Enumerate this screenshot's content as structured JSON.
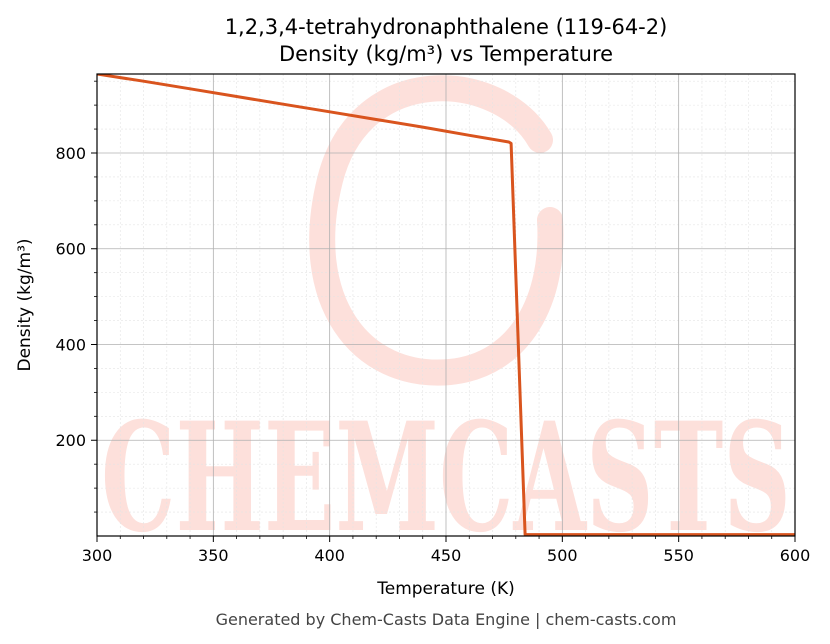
{
  "chart_data": {
    "type": "line",
    "title": "1,2,3,4-tetrahydronaphthalene (119-64-2)",
    "subtitle": "Density (kg/m³) vs Temperature",
    "xlabel": "Temperature (K)",
    "ylabel": "Density (kg/m³)",
    "xlim": [
      300,
      600
    ],
    "ylim": [
      0,
      965
    ],
    "xticks": [
      300,
      350,
      400,
      450,
      500,
      550,
      600
    ],
    "yticks": [
      200,
      400,
      600,
      800
    ],
    "grid": true,
    "legend": "none",
    "series": [
      {
        "color": "#d9541e",
        "x": [
          300,
          320,
          340,
          360,
          380,
          400,
          420,
          440,
          460,
          477,
          478,
          484,
          500,
          520,
          540,
          560,
          580,
          600
        ],
        "y": [
          965,
          950,
          934,
          918,
          902,
          886,
          870,
          854,
          837,
          823,
          820,
          3,
          3,
          3,
          3,
          3,
          3,
          3
        ]
      }
    ]
  },
  "footer": "Generated by Chem-Casts Data Engine | chem-casts.com",
  "watermark": {
    "text": "CHEMCASTS",
    "color": "#fde0db"
  }
}
